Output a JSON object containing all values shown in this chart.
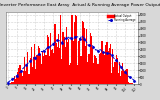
{
  "title": "Solar PV/Inverter Performance East Array  Actual & Running Average Power Output",
  "title_fontsize": 3.2,
  "background_color": "#d8d8d8",
  "plot_bg_color": "#ffffff",
  "bar_color": "#ff0000",
  "avg_color": "#0000cc",
  "grid_color": "#aaaaaa",
  "ylim": [
    0,
    5200
  ],
  "yticks": [
    0,
    500,
    1000,
    1500,
    2000,
    2500,
    3000,
    3500,
    4000,
    4500,
    5000
  ],
  "ytick_labels": [
    "0",
    "500",
    "1k",
    "1.5k",
    "2k",
    "2.5k",
    "3k",
    "3.5k",
    "4k",
    "4.5k",
    "5k"
  ],
  "n_bars": 115,
  "legend_bar_label": "Actual Output",
  "legend_avg_label": "Running Average",
  "legend_colors_bar": "#ff0000",
  "legend_colors_avg": "#0000cc"
}
